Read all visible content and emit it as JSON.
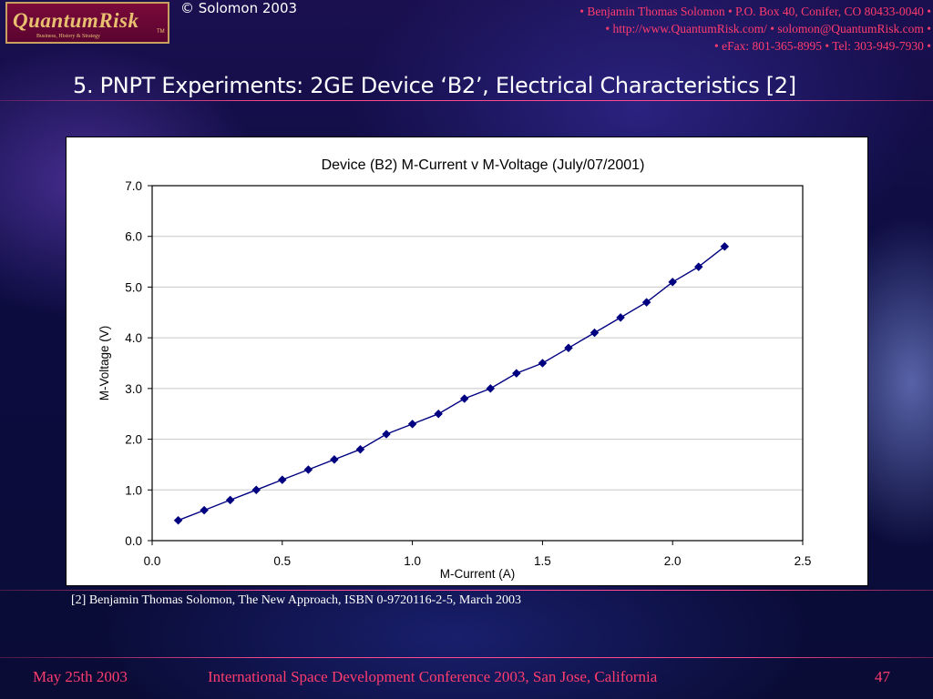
{
  "header": {
    "logo_text": "QuantumRisk",
    "logo_tagline": "Business, History & Strategy",
    "logo_tm": "TM",
    "copyright": "© Solomon 2003",
    "contact_lines": [
      "• Benjamin Thomas Solomon • P.O. Box 40, Conifer, CO 80433-0040 •",
      "• http://www.QuantumRisk.com/ • solomon@QuantumRisk.com •",
      "• eFax: 801-365-8995 • Tel: 303-949-7930 •"
    ]
  },
  "slide": {
    "title": "5. PNPT Experiments: 2GE Device ‘B2’, Electrical Characteristics [2]",
    "footnote": "[2] Benjamin Thomas Solomon, The New Approach, ISBN 0-9720116-2-5, March 2003"
  },
  "footer": {
    "date": "May 25th 2003",
    "conference": "International Space Development Conference 2003, San Jose, California",
    "page": "47"
  },
  "colors": {
    "accent": "#ff3c6e",
    "series": "#000080"
  },
  "chart_data": {
    "type": "line",
    "title": "Device (B2) M-Current v M-Voltage (July/07/2001)",
    "xlabel": "M-Current (A)",
    "ylabel": "M-Voltage (V)",
    "xlim": [
      0,
      2.5
    ],
    "ylim": [
      0,
      7
    ],
    "x_ticks": [
      "0.0",
      "0.5",
      "1.0",
      "1.5",
      "2.0",
      "2.5"
    ],
    "y_ticks": [
      "0.0",
      "1.0",
      "2.0",
      "3.0",
      "4.0",
      "5.0",
      "6.0",
      "7.0"
    ],
    "grid": "horizontal",
    "marker": "diamond",
    "series": [
      {
        "x": [
          0.1,
          0.2,
          0.3,
          0.4,
          0.5,
          0.6,
          0.7,
          0.8,
          0.9,
          1.0,
          1.1,
          1.2,
          1.3,
          1.4,
          1.5,
          1.6,
          1.7,
          1.8,
          1.9,
          2.0,
          2.1,
          2.2
        ],
        "y": [
          0.4,
          0.6,
          0.8,
          1.0,
          1.2,
          1.4,
          1.6,
          1.8,
          2.1,
          2.3,
          2.5,
          2.8,
          3.0,
          3.3,
          3.5,
          3.8,
          4.1,
          4.4,
          4.7,
          5.1,
          5.4,
          5.8
        ]
      }
    ]
  }
}
